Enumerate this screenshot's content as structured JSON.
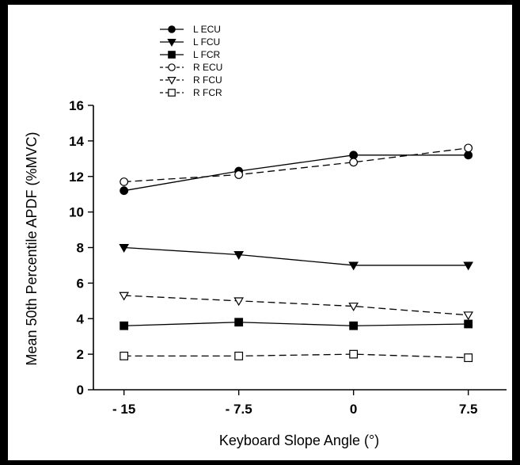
{
  "chart_data": {
    "type": "line",
    "title": "",
    "xlabel": "Keyboard Slope Angle (°)",
    "ylabel": "Mean 50th Percentile APDF (%MVC)",
    "categories": [
      "- 15",
      "- 7.5",
      "0",
      "7.5"
    ],
    "x": [
      -15,
      -7.5,
      0,
      7.5
    ],
    "xlim": [
      -17,
      10
    ],
    "ylim": [
      0,
      16
    ],
    "yticks": [
      0,
      2,
      4,
      6,
      8,
      10,
      12,
      14,
      16
    ],
    "grid": false,
    "legend_position": "top-left",
    "series": [
      {
        "name": "L ECU",
        "values": [
          11.2,
          12.3,
          13.2,
          13.2
        ],
        "marker": "circle",
        "fill": "filled",
        "dash": "solid"
      },
      {
        "name": "L FCU",
        "values": [
          8.0,
          7.6,
          7.0,
          7.0
        ],
        "marker": "triangle-down",
        "fill": "filled",
        "dash": "solid"
      },
      {
        "name": "L FCR",
        "values": [
          3.6,
          3.8,
          3.6,
          3.7
        ],
        "marker": "square",
        "fill": "filled",
        "dash": "solid"
      },
      {
        "name": "R ECU",
        "values": [
          11.7,
          12.1,
          12.8,
          13.6
        ],
        "marker": "circle",
        "fill": "open",
        "dash": "dashed"
      },
      {
        "name": "R FCU",
        "values": [
          5.3,
          5.0,
          4.7,
          4.2
        ],
        "marker": "triangle-down",
        "fill": "open",
        "dash": "dashed"
      },
      {
        "name": "R FCR",
        "values": [
          1.9,
          1.9,
          2.0,
          1.8
        ],
        "marker": "square",
        "fill": "open",
        "dash": "dashed"
      }
    ]
  }
}
